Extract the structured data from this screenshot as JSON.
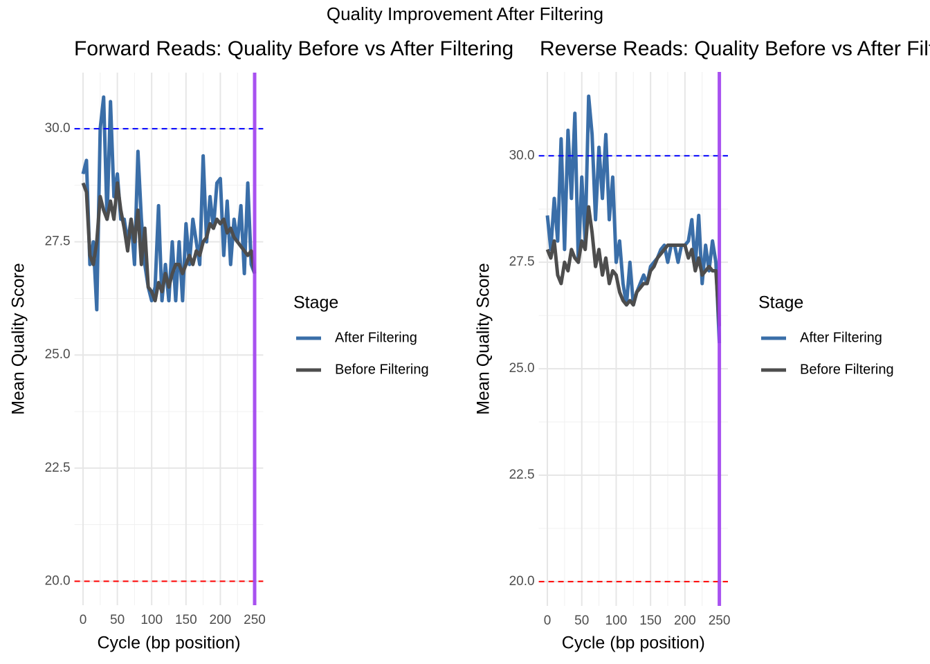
{
  "title": "Quality Improvement After Filtering",
  "chart_data": [
    {
      "type": "line",
      "title": "Forward Reads: Quality Before vs After Filtering",
      "xlabel": "Cycle (bp position)",
      "ylabel": "Mean Quality Score",
      "legend_title": "Stage",
      "x": [
        0,
        5,
        10,
        15,
        20,
        25,
        30,
        35,
        40,
        45,
        50,
        55,
        60,
        65,
        70,
        75,
        80,
        85,
        90,
        95,
        100,
        105,
        110,
        115,
        120,
        125,
        130,
        135,
        140,
        145,
        150,
        155,
        160,
        165,
        170,
        175,
        180,
        185,
        190,
        195,
        200,
        205,
        210,
        215,
        220,
        225,
        230,
        235,
        240,
        245,
        250
      ],
      "series": [
        {
          "name": "After Filtering",
          "color": "#3a6ea8",
          "values": [
            29.0,
            29.3,
            27.0,
            27.5,
            26.0,
            30.0,
            30.7,
            28.0,
            30.6,
            28.5,
            29.0,
            28.0,
            28.0,
            27.5,
            28.0,
            27.0,
            29.5,
            28.0,
            27.0,
            26.5,
            26.2,
            26.5,
            28.3,
            26.2,
            27.0,
            26.2,
            27.5,
            26.2,
            27.5,
            26.2,
            27.9,
            27.0,
            28.0,
            27.5,
            27.0,
            29.4,
            27.5,
            28.5,
            27.8,
            28.8,
            28.9,
            27.2,
            28.4,
            27.0,
            28.0,
            27.5,
            28.3,
            26.8,
            28.8,
            27.0,
            26.8
          ]
        },
        {
          "name": "Before Filtering",
          "color": "#4d4d4d",
          "values": [
            28.8,
            28.6,
            27.2,
            27.0,
            27.5,
            28.5,
            28.2,
            28.0,
            28.4,
            28.0,
            28.8,
            28.2,
            27.8,
            27.3,
            28.0,
            27.5,
            28.2,
            27.0,
            27.8,
            26.5,
            26.4,
            26.2,
            26.6,
            26.4,
            26.8,
            26.5,
            26.8,
            27.0,
            27.0,
            26.8,
            27.0,
            27.2,
            27.0,
            27.3,
            27.2,
            27.5,
            27.6,
            27.9,
            27.8,
            28.0,
            27.9,
            28.0,
            27.7,
            27.8,
            27.6,
            27.5,
            27.4,
            27.3,
            27.2,
            27.3,
            26.8
          ]
        }
      ],
      "xlim": [
        -12.5,
        262.5
      ],
      "xticks": [
        0,
        50,
        100,
        150,
        200,
        250
      ],
      "ylim": [
        19.47,
        31.24
      ],
      "yticks": [
        {
          "value": 20,
          "label": "20.0"
        },
        {
          "value": 22.5,
          "label": "22.5"
        },
        {
          "value": 25,
          "label": "25.0"
        },
        {
          "value": 27.5,
          "label": "27.5"
        },
        {
          "value": 30,
          "label": "30.0"
        }
      ],
      "hlines": [
        {
          "value": 30,
          "color": "#0000ff"
        },
        {
          "value": 20,
          "color": "#ff0000"
        }
      ],
      "vlines": [
        {
          "value": 250,
          "color": "#a040f0"
        }
      ],
      "grid": true
    },
    {
      "type": "line",
      "title": "Reverse Reads: Quality Before vs After Filtering",
      "xlabel": "Cycle (bp position)",
      "ylabel": "Mean Quality Score",
      "legend_title": "Stage",
      "x": [
        0,
        5,
        10,
        15,
        20,
        25,
        30,
        35,
        40,
        45,
        50,
        55,
        60,
        65,
        70,
        75,
        80,
        85,
        90,
        95,
        100,
        105,
        110,
        115,
        120,
        125,
        130,
        135,
        140,
        145,
        150,
        155,
        160,
        165,
        170,
        175,
        180,
        185,
        190,
        195,
        200,
        205,
        210,
        215,
        220,
        225,
        230,
        235,
        240,
        245,
        250
      ],
      "series": [
        {
          "name": "After Filtering",
          "color": "#3a6ea8",
          "values": [
            28.6,
            27.8,
            29.0,
            28.0,
            30.4,
            27.8,
            30.6,
            29.0,
            31.0,
            27.5,
            29.5,
            28.0,
            31.4,
            30.5,
            28.5,
            30.2,
            29.0,
            30.5,
            28.5,
            29.5,
            27.5,
            28.0,
            27.0,
            26.5,
            27.5,
            26.5,
            26.8,
            27.0,
            27.2,
            27.0,
            27.4,
            27.5,
            27.6,
            27.8,
            27.9,
            27.5,
            27.9,
            27.9,
            27.5,
            27.9,
            27.9,
            28.0,
            28.5,
            27.4,
            28.6,
            27.0,
            27.9,
            27.3,
            28.0,
            27.5,
            25.6
          ]
        },
        {
          "name": "Before Filtering",
          "color": "#4d4d4d",
          "values": [
            27.8,
            27.6,
            28.0,
            27.2,
            27.0,
            27.5,
            27.3,
            27.8,
            27.6,
            27.5,
            28.0,
            27.8,
            28.8,
            28.2,
            27.4,
            27.8,
            27.2,
            27.6,
            27.0,
            27.3,
            27.2,
            26.8,
            26.6,
            26.5,
            26.6,
            26.5,
            26.8,
            26.9,
            27.0,
            27.0,
            27.3,
            27.4,
            27.6,
            27.7,
            27.8,
            27.9,
            27.9,
            27.9,
            27.9,
            27.9,
            27.9,
            27.6,
            27.8,
            27.3,
            27.6,
            27.2,
            27.3,
            27.4,
            27.3,
            27.3,
            26.0
          ]
        }
      ],
      "xlim": [
        -12.5,
        262.5
      ],
      "xticks": [
        0,
        50,
        100,
        150,
        200,
        250
      ],
      "ylim": [
        19.43,
        31.97
      ],
      "yticks": [
        {
          "value": 20,
          "label": "20.0"
        },
        {
          "value": 22.5,
          "label": "22.5"
        },
        {
          "value": 25,
          "label": "25.0"
        },
        {
          "value": 27.5,
          "label": "27.5"
        },
        {
          "value": 30,
          "label": "30.0"
        }
      ],
      "hlines": [
        {
          "value": 30,
          "color": "#0000ff"
        },
        {
          "value": 20,
          "color": "#ff0000"
        }
      ],
      "vlines": [
        {
          "value": 250,
          "color": "#a040f0"
        }
      ],
      "grid": true
    }
  ]
}
